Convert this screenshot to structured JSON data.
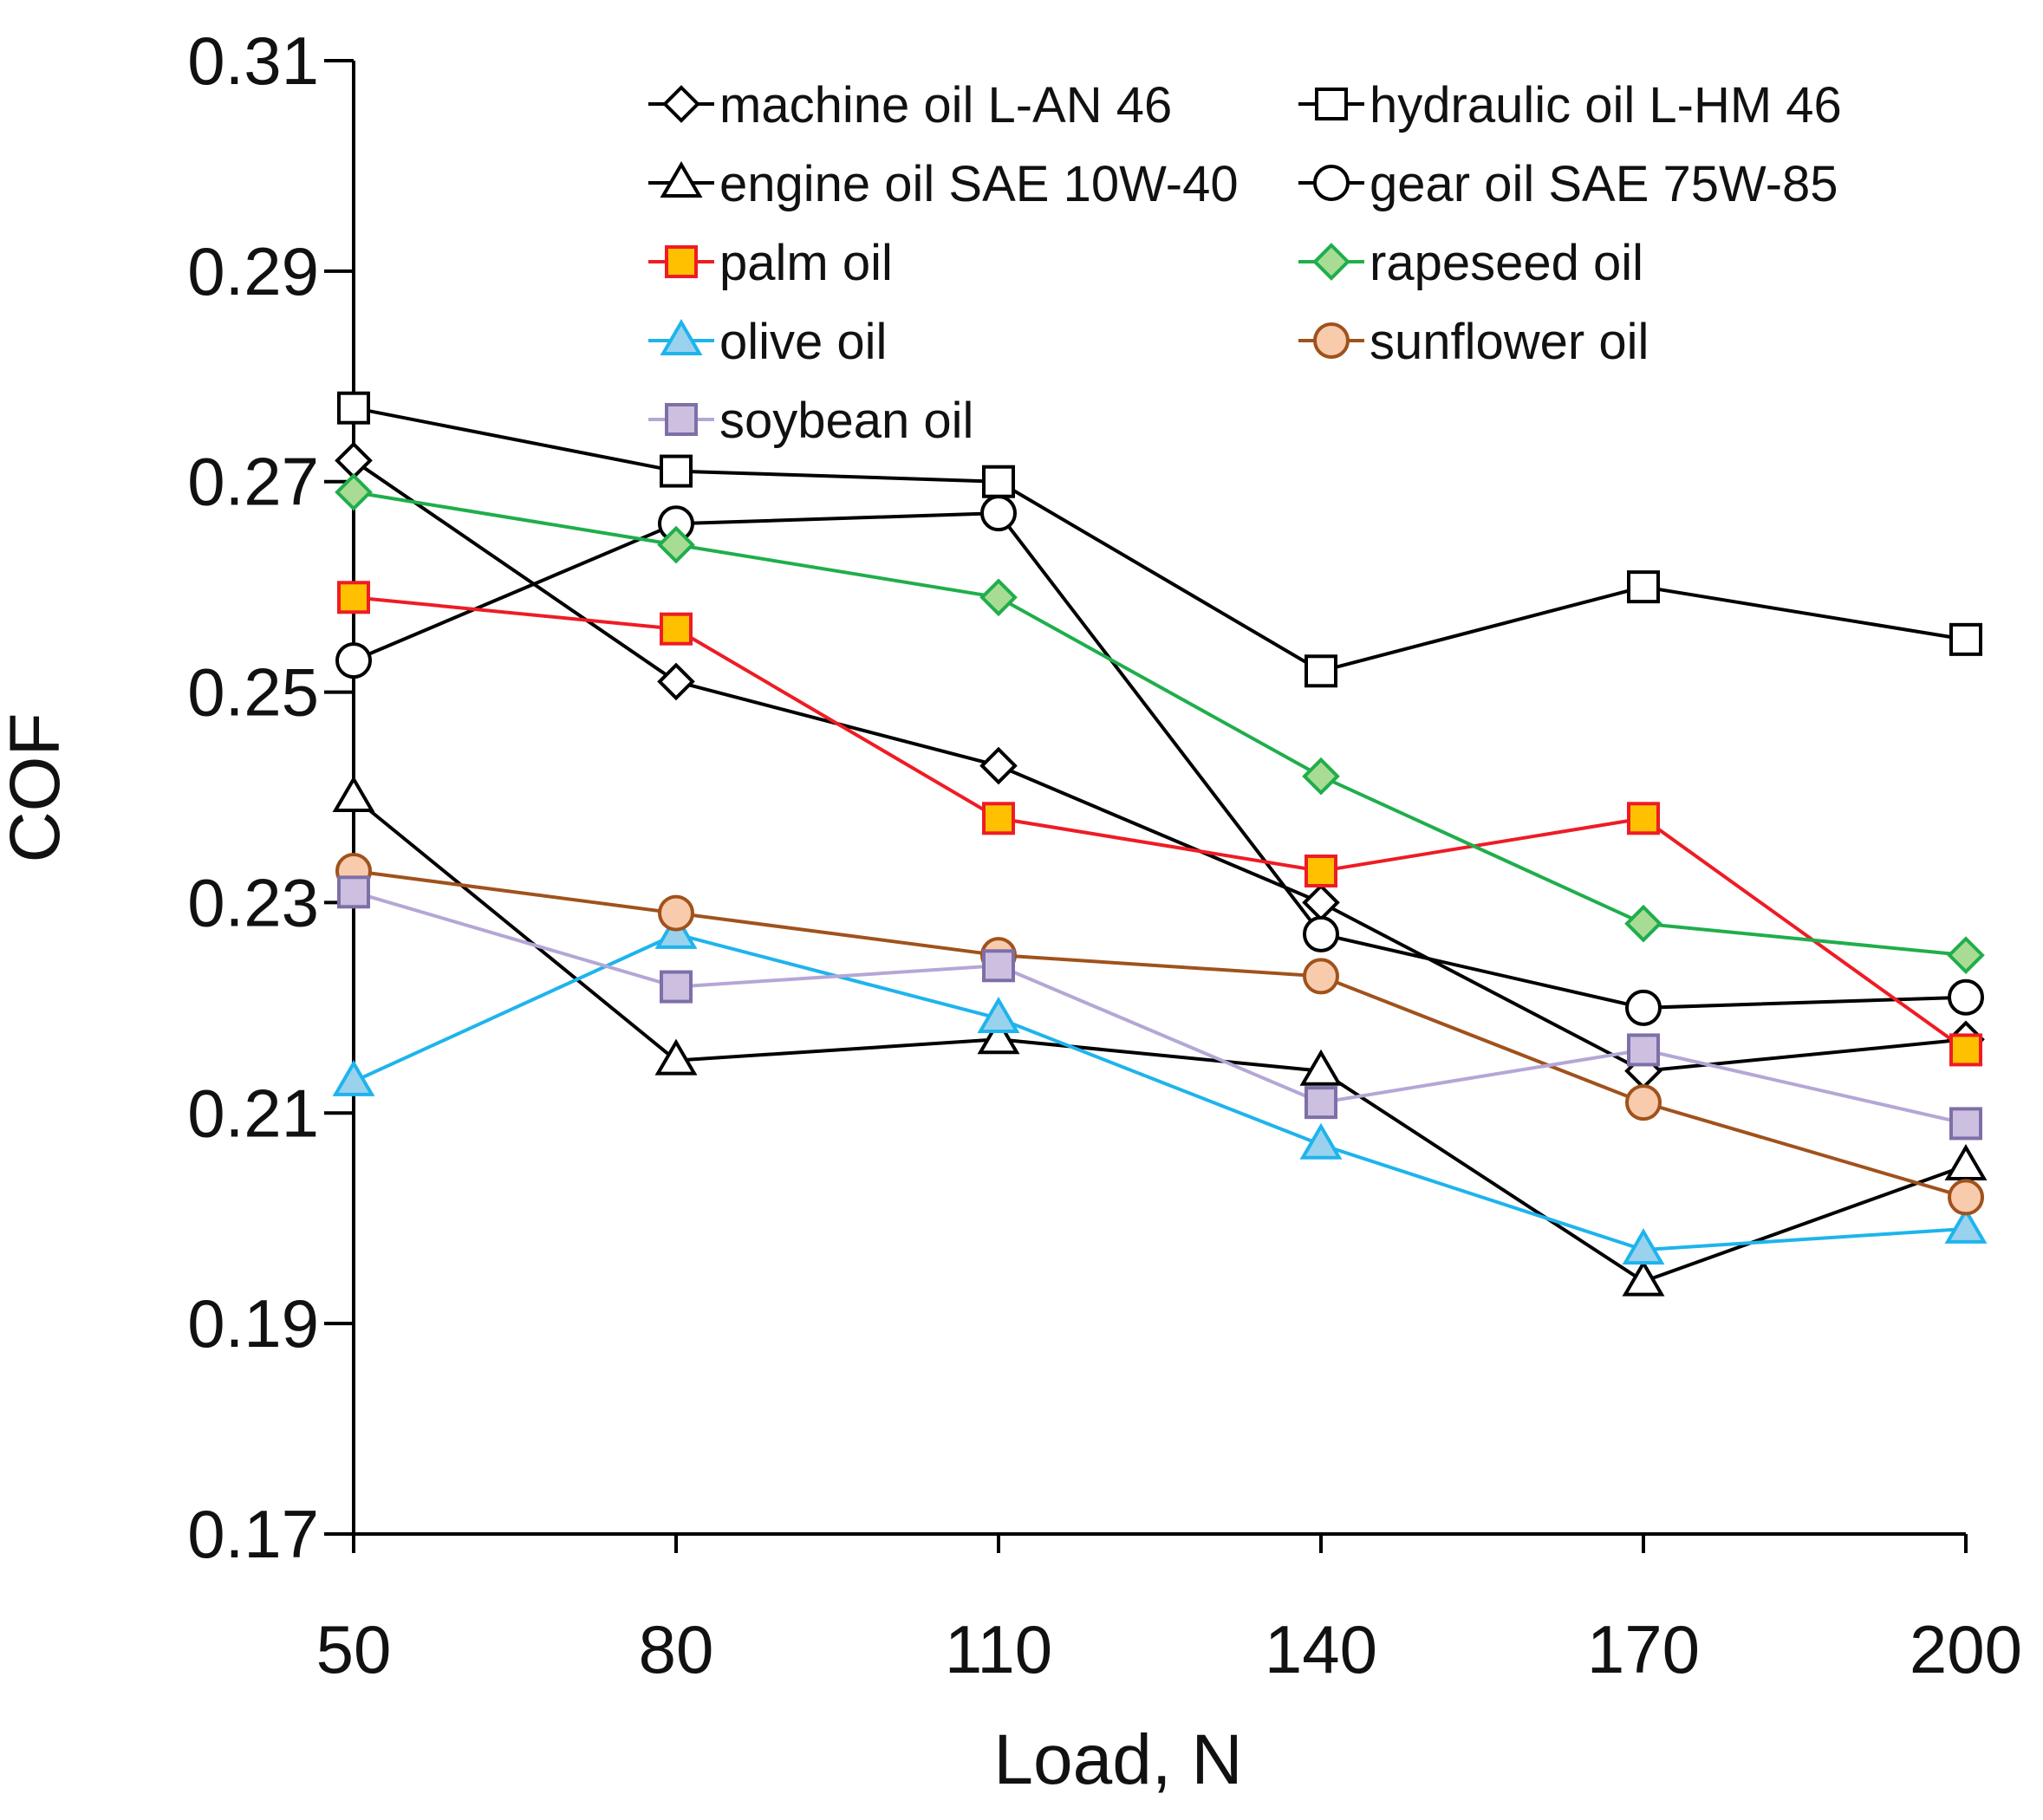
{
  "chart_data": {
    "type": "line",
    "title": "",
    "xlabel": "Load, N",
    "ylabel": "COF",
    "x": [
      50,
      80,
      110,
      140,
      170,
      200
    ],
    "xtick_labels": [
      "50",
      "80",
      "110",
      "140",
      "170",
      "200"
    ],
    "ylim": [
      0.17,
      0.31
    ],
    "yticks": [
      0.17,
      0.19,
      0.21,
      0.23,
      0.25,
      0.27,
      0.29,
      0.31
    ],
    "ytick_labels": [
      "0.17",
      "0.19",
      "0.21",
      "0.23",
      "0.25",
      "0.27",
      "0.29",
      "0.31"
    ],
    "grid": false,
    "legend_position": "top-right",
    "series": [
      {
        "name": "machine oil L-AN 46",
        "marker": "diamond",
        "line_color": "#000000",
        "marker_fill": "#ffffff",
        "marker_edge": "#000000",
        "values": [
          0.272,
          0.251,
          0.243,
          0.23,
          0.214,
          0.217
        ]
      },
      {
        "name": "hydraulic oil L-HM 46",
        "marker": "square",
        "line_color": "#000000",
        "marker_fill": "#ffffff",
        "marker_edge": "#000000",
        "values": [
          0.277,
          0.271,
          0.27,
          0.252,
          0.26,
          0.255
        ]
      },
      {
        "name": "engine oil SAE 10W-40",
        "marker": "triangle",
        "line_color": "#000000",
        "marker_fill": "#ffffff",
        "marker_edge": "#000000",
        "values": [
          0.24,
          0.215,
          0.217,
          0.214,
          0.194,
          0.205
        ]
      },
      {
        "name": "gear oil SAE 75W-85",
        "marker": "circle",
        "line_color": "#000000",
        "marker_fill": "#ffffff",
        "marker_edge": "#000000",
        "values": [
          0.253,
          0.266,
          0.267,
          0.227,
          0.22,
          0.221
        ]
      },
      {
        "name": "palm oil",
        "marker": "square",
        "line_color": "#ee1c24",
        "marker_fill": "#ffc000",
        "marker_edge": "#ee1c24",
        "values": [
          0.259,
          0.256,
          0.238,
          0.233,
          0.238,
          0.216
        ]
      },
      {
        "name": "rapeseed oil",
        "marker": "diamond",
        "line_color": "#1fae4b",
        "marker_fill": "#a8dc95",
        "marker_edge": "#1fae4b",
        "values": [
          0.269,
          0.264,
          0.259,
          0.242,
          0.228,
          0.225
        ]
      },
      {
        "name": "olive oil",
        "marker": "triangle",
        "line_color": "#1eb4ec",
        "marker_fill": "#9ad2ee",
        "marker_edge": "#1eb4ec",
        "values": [
          0.213,
          0.227,
          0.219,
          0.207,
          0.197,
          0.199
        ]
      },
      {
        "name": "sunflower oil",
        "marker": "circle",
        "line_color": "#a0521c",
        "marker_fill": "#f8cbad",
        "marker_edge": "#a0521c",
        "values": [
          0.233,
          0.229,
          0.225,
          0.223,
          0.211,
          0.202
        ]
      },
      {
        "name": "soybean oil",
        "marker": "square",
        "line_color": "#b4a7d6",
        "marker_fill": "#cdbfe0",
        "marker_edge": "#7e6fa8",
        "values": [
          0.231,
          0.222,
          0.224,
          0.211,
          0.216,
          0.209
        ]
      }
    ]
  }
}
